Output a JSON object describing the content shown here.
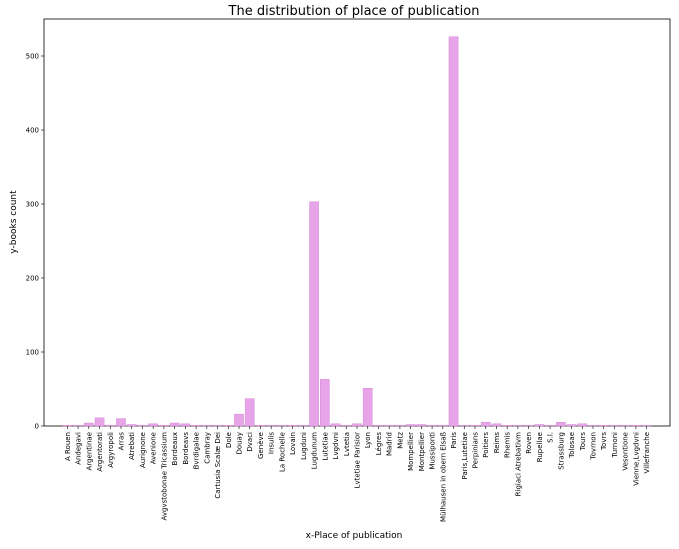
{
  "chart_data": {
    "type": "bar",
    "title": "The distribution of place of publication",
    "xlabel": "x-Place of publication",
    "ylabel": "y-books count",
    "ylim": [
      0,
      550
    ],
    "yticks": [
      0,
      100,
      200,
      300,
      400,
      500
    ],
    "grid": false,
    "bar_color": "#e8a4e8",
    "bar_edge_color": "#d48bd4",
    "categories": [
      "A Rouen",
      "Andegavi",
      "Argentinae",
      "Argentorati",
      "Argyropoli",
      "Arras",
      "Atrebati",
      "Aurignone",
      "Avenione",
      "Avgvstobonae Tricassium",
      "Bordeaux",
      "Bordeavs",
      "Bvrdigalae",
      "Cambray",
      "Cartusia Scalæ Dei",
      "Dole",
      "Douay",
      "Dvaci",
      "Genève",
      "Insulis",
      "La Rochelle",
      "Lovain",
      "Lugduni",
      "Lugdunum",
      "Lutetiae",
      "Lvgdvni",
      "Lvtetia",
      "Lvtetiae Parisior",
      "Lyon",
      "Légres",
      "Madrid",
      "Metz",
      "Mompellier",
      "Montpellier",
      "Mussiponti",
      "Mülhausen in obern Elsaß",
      "Paris",
      "Paris,Lutetiae",
      "Perpinians",
      "Poitiers",
      "Reims",
      "Rhemis",
      "Rigiaci Atrebativm",
      "Roven",
      "Rupellae",
      "S.l.",
      "Strassburg",
      "Tolosae",
      "Tours",
      "Tovrnon",
      "Tovrs",
      "Turnoni",
      "Vesontione",
      "Vienne,Lvgdvni",
      "Villefranche"
    ],
    "values": [
      1,
      1,
      4,
      11,
      1,
      10,
      2,
      1,
      3,
      1,
      4,
      3,
      1,
      1,
      1,
      1,
      16,
      37,
      1,
      1,
      1,
      1,
      1,
      303,
      63,
      3,
      1,
      3,
      51,
      1,
      1,
      1,
      2,
      2,
      1,
      1,
      526,
      1,
      1,
      5,
      3,
      1,
      1,
      1,
      2,
      1,
      5,
      2,
      3,
      1,
      1,
      1,
      1,
      1,
      1
    ]
  }
}
